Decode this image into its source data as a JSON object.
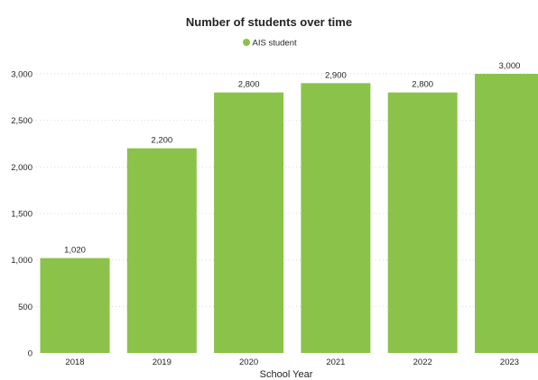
{
  "chart_data": {
    "type": "bar",
    "title": "Number of students over time",
    "xlabel": "School Year",
    "ylabel": "",
    "categories": [
      "2018",
      "2019",
      "2020",
      "2021",
      "2022",
      "2023"
    ],
    "series": [
      {
        "name": "AIS student",
        "values": [
          1020,
          2200,
          2800,
          2900,
          2800,
          3000
        ]
      }
    ],
    "data_labels": [
      "1,020",
      "2,200",
      "2,800",
      "2,900",
      "2,800",
      "3,000"
    ],
    "yticks": [
      0,
      500,
      1000,
      1500,
      2000,
      2500,
      3000
    ],
    "ytick_labels": [
      "0",
      "500",
      "1,000",
      "1,500",
      "2,000",
      "2,500",
      "3,000"
    ],
    "ylim": [
      0,
      3000
    ],
    "grid": true,
    "legend_position": "top-center",
    "colors": {
      "bar": "#8bc34a",
      "legend_marker": "#8bc34a"
    }
  }
}
